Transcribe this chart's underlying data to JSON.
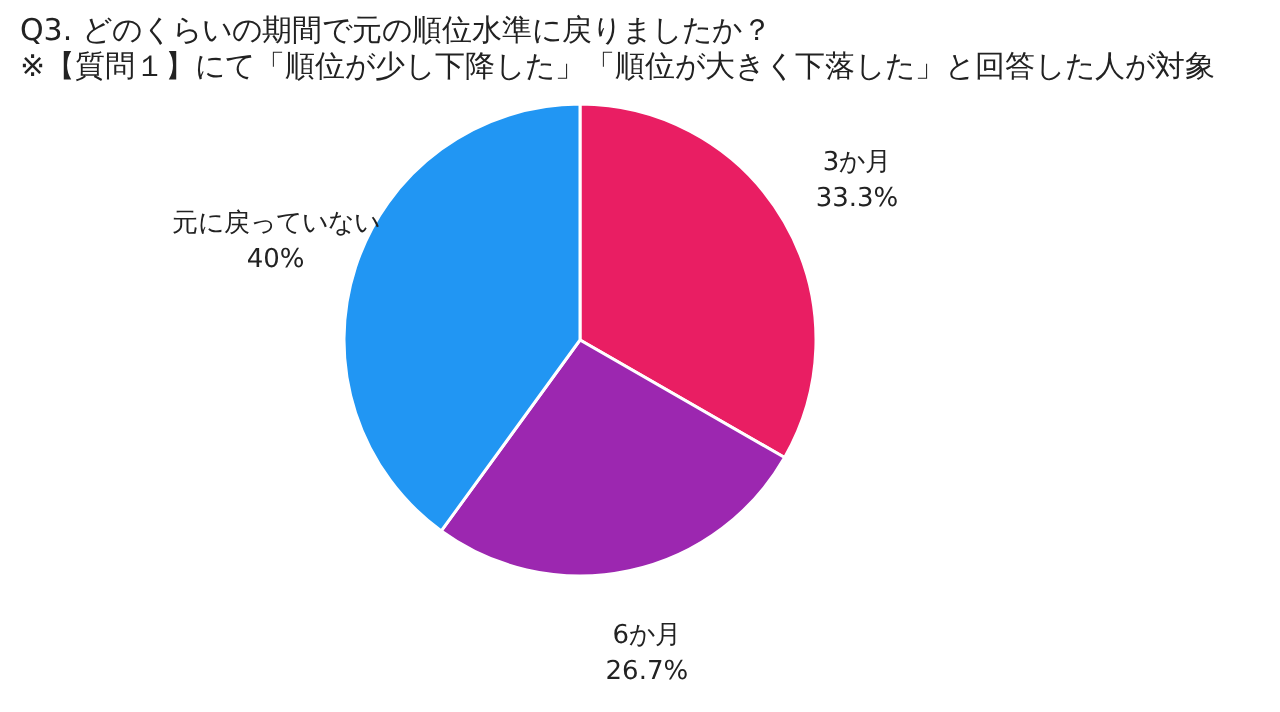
{
  "chart_data": {
    "type": "pie",
    "title": "Q3. どのくらいの期間で元の順位水準に戻りましたか？",
    "subtitle": "※【質問１】にて「順位が少し下降した」「順位が大きく下落した」と回答した人が対象",
    "categories": [
      "3か月",
      "6か月",
      "元に戻っていない"
    ],
    "values": [
      33.3,
      26.7,
      40
    ],
    "value_labels": [
      "33.3%",
      "26.7%",
      "40%"
    ],
    "colors": [
      "#e91e63",
      "#9c27b0",
      "#2196f3"
    ],
    "legend": false
  }
}
